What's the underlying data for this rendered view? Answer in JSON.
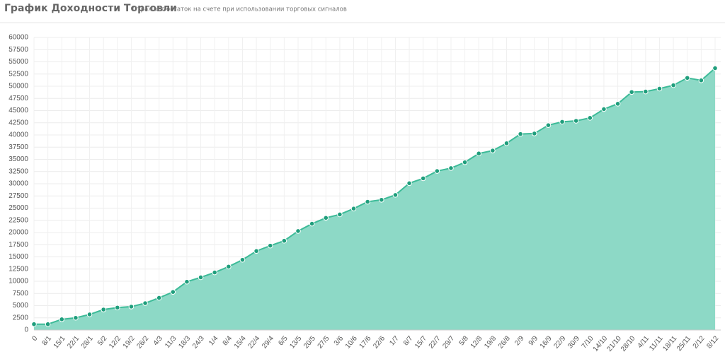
{
  "chart_data": {
    "type": "area",
    "title": "График Доходности Торговли",
    "subtitle": "Отражает остаток на счете при использовании торговых сигналов",
    "categories": [
      "0",
      "8/1",
      "15/1",
      "22/1",
      "28/1",
      "5/2",
      "12/2",
      "19/2",
      "26/2",
      "4/3",
      "11/3",
      "18/3",
      "24/3",
      "1/4",
      "8/4",
      "15/4",
      "22/4",
      "29/4",
      "6/5",
      "13/5",
      "20/5",
      "27/5",
      "3/6",
      "10/6",
      "17/6",
      "22/6",
      "1/7",
      "8/7",
      "15/7",
      "22/7",
      "29/7",
      "5/8",
      "12/8",
      "19/8",
      "26/8",
      "2/9",
      "9/9",
      "16/9",
      "22/9",
      "30/9",
      "7/10",
      "14/10",
      "21/10",
      "28/10",
      "4/11",
      "11/11",
      "18/11",
      "25/11",
      "2/12",
      "8/12"
    ],
    "values": [
      1200,
      1200,
      2200,
      2500,
      3200,
      4200,
      4600,
      4800,
      5500,
      6600,
      7800,
      9900,
      10800,
      11800,
      13000,
      14400,
      16200,
      17300,
      18300,
      20300,
      21800,
      23000,
      23700,
      24900,
      26300,
      26700,
      27700,
      30100,
      31100,
      32600,
      33200,
      34400,
      36200,
      36800,
      38300,
      40200,
      40300,
      42000,
      42700,
      42900,
      43500,
      45300,
      46400,
      48800,
      48900,
      49500,
      50200,
      51700,
      51200,
      53700
    ],
    "color": "#3dbb98",
    "fill": "#8dd9c6",
    "ylim": [
      0,
      60000
    ],
    "yticks": [
      0,
      2500,
      5000,
      7500,
      10000,
      12500,
      15000,
      17500,
      20000,
      22500,
      25000,
      27500,
      30000,
      32500,
      35000,
      37500,
      40000,
      42500,
      45000,
      47500,
      50000,
      52500,
      55000,
      57500,
      60000
    ],
    "grid": true
  }
}
